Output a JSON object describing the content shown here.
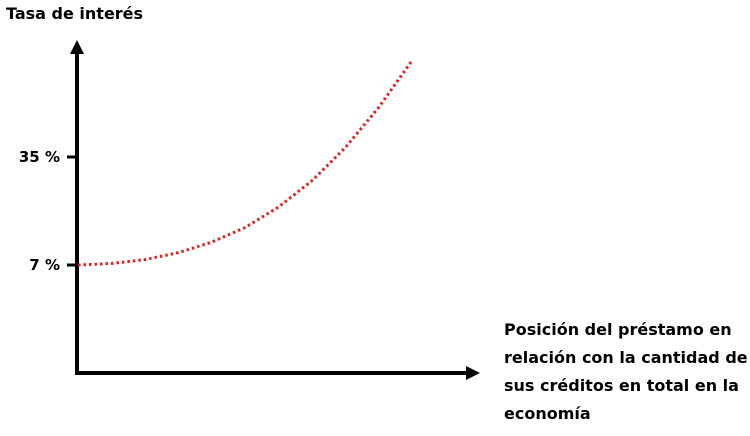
{
  "chart_data": {
    "type": "line",
    "title": "",
    "ylabel": "Tasa de interés",
    "xlabel": "Posición del préstamo en relación con la cantidad de sus créditos en total en la economía",
    "yticks": [
      {
        "label": "35 %",
        "value": 35
      },
      {
        "label": "7 %",
        "value": 7
      }
    ],
    "ylim": [
      -21,
      65
    ],
    "xlim": [
      0,
      1
    ],
    "grid": false,
    "series": [
      {
        "style": "dotted",
        "color": "#e02020",
        "points": [
          [
            0.0,
            7.0
          ],
          [
            0.1,
            7.4
          ],
          [
            0.2,
            8.4
          ],
          [
            0.3,
            10.2
          ],
          [
            0.4,
            12.9
          ],
          [
            0.5,
            16.7
          ],
          [
            0.6,
            22.0
          ],
          [
            0.7,
            28.8
          ],
          [
            0.8,
            37.4
          ],
          [
            0.9,
            47.8
          ],
          [
            1.0,
            60.0
          ]
        ]
      }
    ]
  }
}
